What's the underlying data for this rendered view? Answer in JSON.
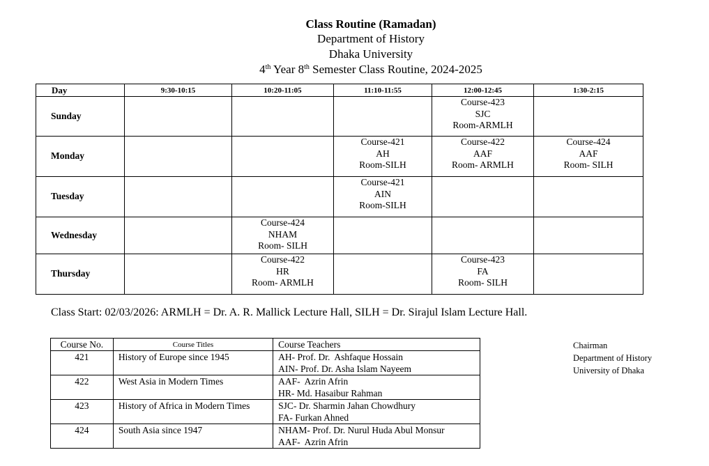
{
  "header": {
    "title": "Class Routine (Ramadan)",
    "department": "Department of History",
    "university": "Dhaka University",
    "year_num": "4",
    "year_sup": "th",
    "year_word": " Year ",
    "sem_num": "8",
    "sem_sup": "th",
    "sem_rest": " Semester Class Routine, 2024-2025"
  },
  "routine": {
    "day_header": "Day",
    "slots": [
      "9:30-10:15",
      "10:20-11:05",
      "11:10-11:55",
      "12:00-12:45",
      "1:30-2:15"
    ],
    "rows": [
      {
        "day": "Sunday",
        "cells": [
          [],
          [],
          [],
          [
            "Course-423",
            "SJC",
            "Room-ARMLH"
          ],
          []
        ]
      },
      {
        "day": "Monday",
        "cells": [
          [],
          [],
          [
            "Course-421",
            "AH",
            "Room-SILH"
          ],
          [
            "Course-422",
            "AAF",
            "Room- ARMLH"
          ],
          [
            "Course-424",
            "AAF",
            "Room- SILH"
          ]
        ]
      },
      {
        "day": "Tuesday",
        "cells": [
          [],
          [],
          [
            "Course-421",
            "AIN",
            "Room-SILH"
          ],
          [],
          []
        ]
      },
      {
        "day": "Wednesday",
        "cells": [
          [],
          [
            "Course-424",
            "NHAM",
            "Room- SILH"
          ],
          [],
          [],
          []
        ]
      },
      {
        "day": "Thursday",
        "cells": [
          [],
          [
            "Course-422",
            "HR",
            "Room- ARMLH"
          ],
          [],
          [
            "Course-423",
            "FA",
            "Room- SILH"
          ],
          []
        ]
      }
    ]
  },
  "note": "Class Start: 02/03/2026: ARMLH = Dr. A. R. Mallick Lecture Hall, SILH = Dr. Sirajul Islam Lecture Hall.",
  "courses": {
    "headers": [
      "Course No.",
      "Course Titles",
      "Course Teachers"
    ],
    "rows": [
      {
        "no": "421",
        "title": "History of Europe since 1945",
        "teachers": [
          "AH- Prof. Dr.  Ashfaque Hossain",
          "AIN- Prof. Dr. Asha Islam Nayeem"
        ]
      },
      {
        "no": "422",
        "title": "West Asia in Modern Times",
        "teachers": [
          "AAF-  Azrin Afrin",
          "HR- Md. Hasaibur Rahman"
        ]
      },
      {
        "no": "423",
        "title": "History of Africa in Modern Times",
        "teachers": [
          "SJC- Dr. Sharmin Jahan Chowdhury",
          "FA- Furkan Ahned"
        ]
      },
      {
        "no": "424",
        "title": "South Asia since 1947",
        "teachers": [
          "NHAM- Prof. Dr. Nurul Huda Abul Monsur",
          "AAF-  Azrin Afrin"
        ]
      }
    ]
  },
  "signature": {
    "role": "Chairman",
    "department": "Department of History",
    "university": "University of Dhaka"
  }
}
